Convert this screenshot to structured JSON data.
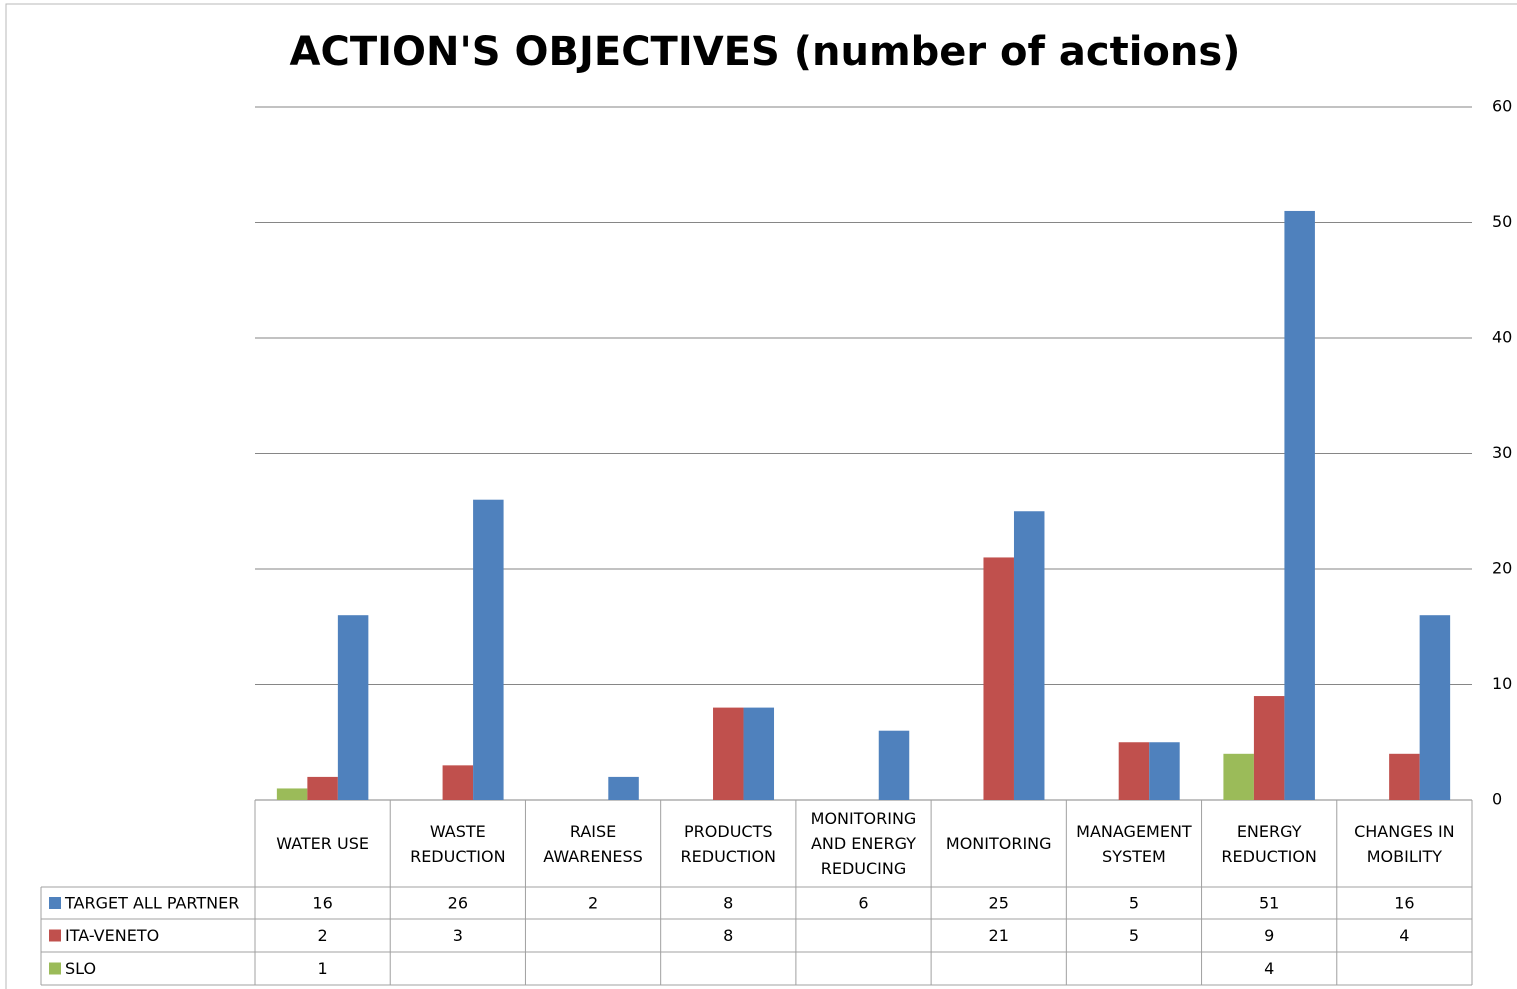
{
  "chart_data": {
    "type": "bar",
    "title": "ACTION'S OBJECTIVES (number of actions)",
    "categories": [
      "WATER USE",
      "WASTE REDUCTION",
      "RAISE AWARENESS",
      "PRODUCTS REDUCTION",
      "MONITORING AND ENERGY REDUCING",
      "MONITORING",
      "MANAGEMENT SYSTEM",
      "ENERGY REDUCTION",
      "CHANGES IN MOBILITY"
    ],
    "series": [
      {
        "name": "SLO",
        "color": "#9bbb59",
        "values": [
          1,
          null,
          null,
          null,
          null,
          null,
          null,
          4,
          null
        ]
      },
      {
        "name": "ITA-VENETO",
        "color": "#c0504d",
        "values": [
          2,
          3,
          null,
          8,
          null,
          21,
          5,
          9,
          4
        ]
      },
      {
        "name": "TARGET ALL PARTNER",
        "color": "#4f81bd",
        "values": [
          16,
          26,
          2,
          8,
          6,
          25,
          5,
          51,
          16
        ]
      }
    ],
    "ylim": [
      0,
      60
    ],
    "yticks": [
      0,
      10,
      20,
      30,
      40,
      50,
      60
    ],
    "grid": true,
    "legend": "data-table"
  }
}
